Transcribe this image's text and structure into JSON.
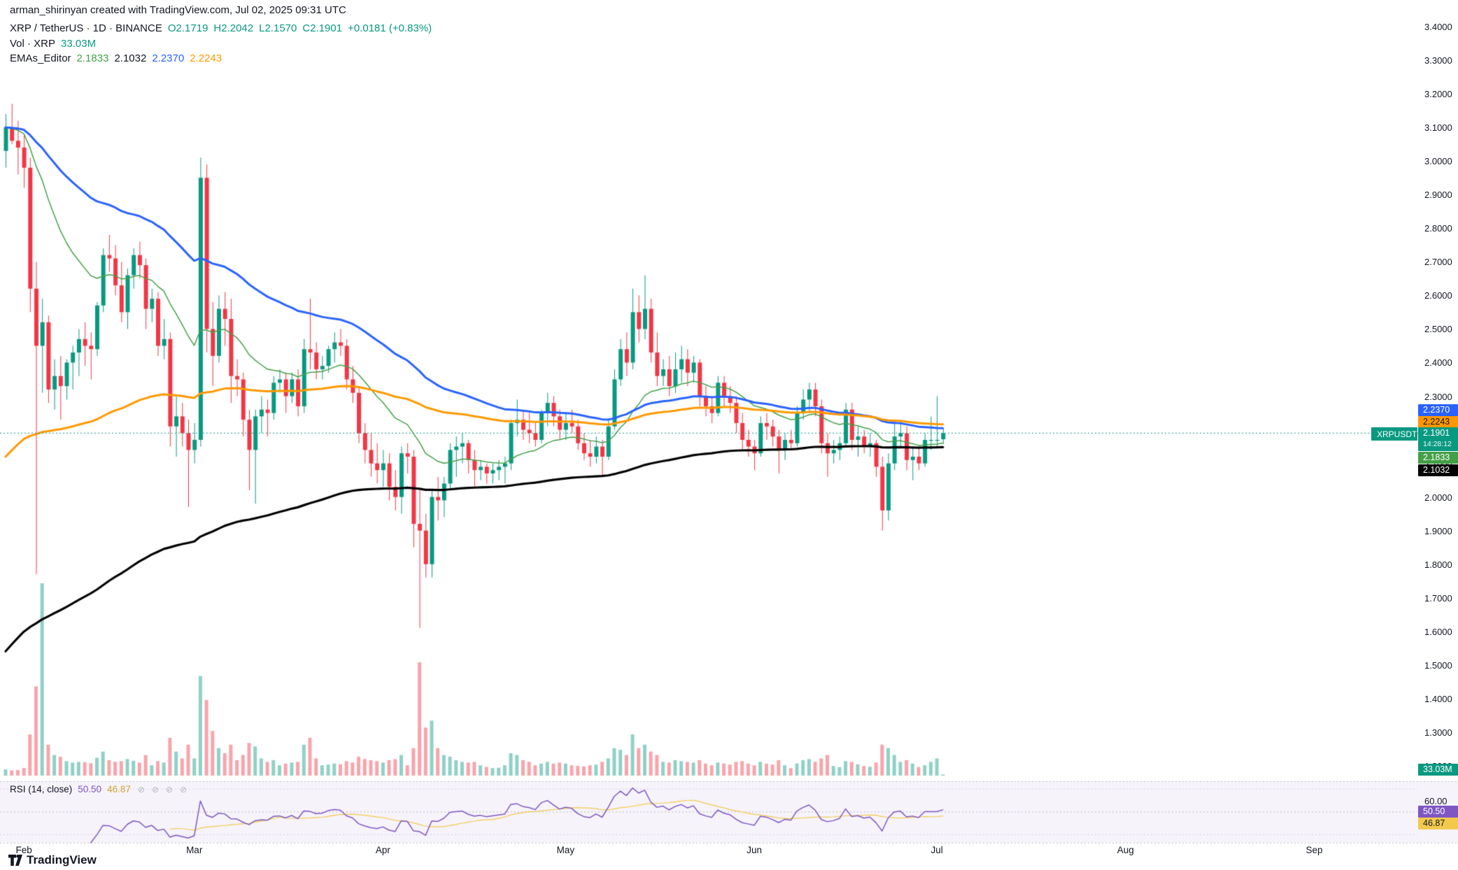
{
  "attribution": "arman_shirinyan created with TradingView.com, Jul 02, 2025 09:31 UTC",
  "header": {
    "symbol_title": "XRP / TetherUS · 1D · BINANCE",
    "ohlc": [
      "O2.1719",
      "H2.2042",
      "L2.1570",
      "C2.1901"
    ],
    "change": "+0.0181 (+0.83%)",
    "volume_label": "Vol · XRP",
    "volume_value": "33.03M",
    "ema_label": "EMAs_Editor",
    "ema_values": [
      "2.1833",
      "2.1032",
      "2.2370",
      "2.2243"
    ]
  },
  "price_axis": {
    "ticks": [
      "3.4000",
      "3.3000",
      "3.2000",
      "3.1000",
      "3.0000",
      "2.9000",
      "2.8000",
      "2.7000",
      "2.6000",
      "2.5000",
      "2.4000",
      "2.3000",
      "2.2000",
      "2.1000",
      "2.0000",
      "1.9000",
      "1.8000",
      "1.7000",
      "1.6000",
      "1.5000",
      "1.4000",
      "1.3000",
      "1.2000"
    ]
  },
  "time_axis": {
    "months": [
      {
        "label": "Feb",
        "index": 3
      },
      {
        "label": "Mar",
        "index": 31
      },
      {
        "label": "Apr",
        "index": 62
      },
      {
        "label": "May",
        "index": 92
      },
      {
        "label": "Jun",
        "index": 123
      },
      {
        "label": "Jul",
        "index": 153
      },
      {
        "label": "Aug",
        "index": 184
      },
      {
        "label": "Sep",
        "index": 215
      }
    ]
  },
  "badges": {
    "blue": "2.2370",
    "orange": "2.2243",
    "symbol": "XRPUSDT",
    "last_price": "2.1901",
    "countdown": "14:28:12",
    "ema_green": "2.1833",
    "ma_black": "2.1032",
    "volume": "33.03M",
    "rsi_scale": "60.00",
    "rsi": "50.50",
    "rsi_ma": "46.87"
  },
  "rsi_panel": {
    "title": "RSI (14, close)",
    "value": "50.50",
    "ma_value": "46.87"
  },
  "branding": "TradingView",
  "colors": {
    "up": "#089981",
    "down": "#F23645",
    "ema_green": "#43A047",
    "ma_black": "#000000",
    "ema_blue": "#2962FF",
    "ema_orange": "#FF9800",
    "rsi_line": "#7E57C2",
    "rsi_ma_line": "#F2C94C",
    "last_price_line": "#089981"
  },
  "chart_data": {
    "type": "candlestick",
    "title": "XRP / TetherUS · 1D · BINANCE",
    "price_range": [
      1.2,
      3.4
    ],
    "last_price": 2.1901,
    "months": [
      "Feb",
      "Mar",
      "Apr",
      "May",
      "Jun",
      "Jul",
      "Aug",
      "Sep"
    ],
    "candles": [
      [
        3.03,
        3.14,
        2.98,
        3.1
      ],
      [
        3.1,
        3.17,
        3.05,
        3.06
      ],
      [
        3.06,
        3.12,
        2.96,
        3.04
      ],
      [
        3.04,
        3.08,
        2.92,
        2.98
      ],
      [
        2.98,
        3.01,
        2.55,
        2.62
      ],
      [
        2.62,
        2.7,
        1.77,
        2.45
      ],
      [
        2.45,
        2.59,
        2.31,
        2.52
      ],
      [
        2.52,
        2.54,
        2.28,
        2.32
      ],
      [
        2.32,
        2.41,
        2.26,
        2.36
      ],
      [
        2.36,
        2.42,
        2.23,
        2.33
      ],
      [
        2.33,
        2.41,
        2.29,
        2.4
      ],
      [
        2.4,
        2.45,
        2.32,
        2.43
      ],
      [
        2.43,
        2.5,
        2.36,
        2.47
      ],
      [
        2.47,
        2.52,
        2.39,
        2.45
      ],
      [
        2.45,
        2.49,
        2.35,
        2.44
      ],
      [
        2.44,
        2.58,
        2.42,
        2.57
      ],
      [
        2.57,
        2.74,
        2.55,
        2.72
      ],
      [
        2.72,
        2.78,
        2.67,
        2.71
      ],
      [
        2.71,
        2.75,
        2.6,
        2.63
      ],
      [
        2.63,
        2.7,
        2.52,
        2.55
      ],
      [
        2.55,
        2.68,
        2.5,
        2.66
      ],
      [
        2.66,
        2.74,
        2.62,
        2.72
      ],
      [
        2.72,
        2.76,
        2.65,
        2.69
      ],
      [
        2.69,
        2.71,
        2.5,
        2.56
      ],
      [
        2.56,
        2.62,
        2.52,
        2.59
      ],
      [
        2.59,
        2.61,
        2.42,
        2.45
      ],
      [
        2.45,
        2.53,
        2.41,
        2.47
      ],
      [
        2.47,
        2.49,
        2.15,
        2.21
      ],
      [
        2.21,
        2.3,
        2.12,
        2.24
      ],
      [
        2.24,
        2.28,
        2.15,
        2.19
      ],
      [
        2.19,
        2.23,
        1.97,
        2.14
      ],
      [
        2.14,
        2.22,
        2.1,
        2.17
      ],
      [
        2.17,
        3.01,
        2.15,
        2.95
      ],
      [
        2.95,
        2.99,
        2.43,
        2.5
      ],
      [
        2.5,
        2.58,
        2.33,
        2.42
      ],
      [
        2.42,
        2.6,
        2.4,
        2.56
      ],
      [
        2.56,
        2.61,
        2.45,
        2.53
      ],
      [
        2.53,
        2.59,
        2.28,
        2.36
      ],
      [
        2.36,
        2.41,
        2.3,
        2.35
      ],
      [
        2.35,
        2.37,
        2.18,
        2.23
      ],
      [
        2.23,
        2.26,
        2.02,
        2.14
      ],
      [
        2.14,
        2.26,
        1.98,
        2.24
      ],
      [
        2.24,
        2.3,
        2.19,
        2.26
      ],
      [
        2.26,
        2.29,
        2.18,
        2.25
      ],
      [
        2.25,
        2.36,
        2.23,
        2.34
      ],
      [
        2.34,
        2.38,
        2.31,
        2.35
      ],
      [
        2.35,
        2.37,
        2.25,
        2.3
      ],
      [
        2.3,
        2.37,
        2.28,
        2.35
      ],
      [
        2.35,
        2.38,
        2.24,
        2.27
      ],
      [
        2.27,
        2.47,
        2.25,
        2.44
      ],
      [
        2.44,
        2.59,
        2.38,
        2.43
      ],
      [
        2.43,
        2.46,
        2.35,
        2.38
      ],
      [
        2.38,
        2.42,
        2.35,
        2.39
      ],
      [
        2.39,
        2.45,
        2.37,
        2.44
      ],
      [
        2.44,
        2.49,
        2.4,
        2.46
      ],
      [
        2.46,
        2.5,
        2.42,
        2.45
      ],
      [
        2.45,
        2.47,
        2.32,
        2.35
      ],
      [
        2.35,
        2.39,
        2.28,
        2.31
      ],
      [
        2.31,
        2.33,
        2.16,
        2.19
      ],
      [
        2.19,
        2.22,
        2.1,
        2.14
      ],
      [
        2.14,
        2.19,
        2.06,
        2.1
      ],
      [
        2.1,
        2.16,
        2.04,
        2.08
      ],
      [
        2.08,
        2.14,
        2.03,
        2.1
      ],
      [
        2.1,
        2.13,
        1.99,
        2.03
      ],
      [
        2.03,
        2.08,
        1.96,
        2.0
      ],
      [
        2.0,
        2.15,
        1.95,
        2.13
      ],
      [
        2.13,
        2.16,
        2.07,
        2.12
      ],
      [
        2.12,
        2.14,
        1.85,
        1.92
      ],
      [
        1.92,
        2.02,
        1.61,
        1.9
      ],
      [
        1.9,
        1.95,
        1.76,
        1.8
      ],
      [
        1.8,
        2.02,
        1.76,
        2.0
      ],
      [
        2.0,
        2.06,
        1.93,
        1.99
      ],
      [
        1.99,
        2.06,
        1.94,
        2.04
      ],
      [
        2.04,
        2.16,
        2.02,
        2.14
      ],
      [
        2.14,
        2.18,
        2.06,
        2.15
      ],
      [
        2.15,
        2.19,
        2.1,
        2.16
      ],
      [
        2.16,
        2.17,
        2.07,
        2.11
      ],
      [
        2.11,
        2.14,
        2.03,
        2.08
      ],
      [
        2.08,
        2.11,
        2.05,
        2.09
      ],
      [
        2.09,
        2.1,
        2.04,
        2.07
      ],
      [
        2.07,
        2.1,
        2.04,
        2.08
      ],
      [
        2.08,
        2.11,
        2.05,
        2.09
      ],
      [
        2.09,
        2.12,
        2.04,
        2.1
      ],
      [
        2.1,
        2.23,
        2.08,
        2.22
      ],
      [
        2.22,
        2.29,
        2.18,
        2.23
      ],
      [
        2.23,
        2.26,
        2.17,
        2.2
      ],
      [
        2.2,
        2.25,
        2.16,
        2.19
      ],
      [
        2.19,
        2.22,
        2.15,
        2.17
      ],
      [
        2.17,
        2.26,
        2.16,
        2.25
      ],
      [
        2.25,
        2.31,
        2.21,
        2.28
      ],
      [
        2.28,
        2.3,
        2.21,
        2.24
      ],
      [
        2.24,
        2.26,
        2.17,
        2.2
      ],
      [
        2.2,
        2.25,
        2.17,
        2.22
      ],
      [
        2.22,
        2.26,
        2.19,
        2.21
      ],
      [
        2.21,
        2.23,
        2.14,
        2.16
      ],
      [
        2.16,
        2.19,
        2.11,
        2.13
      ],
      [
        2.13,
        2.17,
        2.09,
        2.12
      ],
      [
        2.12,
        2.18,
        2.1,
        2.15
      ],
      [
        2.15,
        2.17,
        2.06,
        2.12
      ],
      [
        2.12,
        2.23,
        2.11,
        2.21
      ],
      [
        2.21,
        2.38,
        2.2,
        2.35
      ],
      [
        2.35,
        2.47,
        2.33,
        2.44
      ],
      [
        2.44,
        2.49,
        2.36,
        2.4
      ],
      [
        2.4,
        2.62,
        2.38,
        2.55
      ],
      [
        2.55,
        2.6,
        2.46,
        2.5
      ],
      [
        2.5,
        2.66,
        2.47,
        2.56
      ],
      [
        2.56,
        2.59,
        2.4,
        2.43
      ],
      [
        2.43,
        2.49,
        2.33,
        2.36
      ],
      [
        2.36,
        2.41,
        2.33,
        2.38
      ],
      [
        2.38,
        2.42,
        2.3,
        2.33
      ],
      [
        2.33,
        2.43,
        2.31,
        2.38
      ],
      [
        2.38,
        2.45,
        2.34,
        2.41
      ],
      [
        2.41,
        2.44,
        2.33,
        2.37
      ],
      [
        2.37,
        2.42,
        2.34,
        2.4
      ],
      [
        2.4,
        2.41,
        2.27,
        2.3
      ],
      [
        2.3,
        2.33,
        2.24,
        2.27
      ],
      [
        2.27,
        2.3,
        2.22,
        2.25
      ],
      [
        2.25,
        2.36,
        2.24,
        2.34
      ],
      [
        2.34,
        2.36,
        2.27,
        2.3
      ],
      [
        2.3,
        2.33,
        2.25,
        2.28
      ],
      [
        2.28,
        2.3,
        2.19,
        2.22
      ],
      [
        2.22,
        2.25,
        2.14,
        2.17
      ],
      [
        2.17,
        2.2,
        2.12,
        2.15
      ],
      [
        2.15,
        2.17,
        2.08,
        2.13
      ],
      [
        2.13,
        2.24,
        2.12,
        2.22
      ],
      [
        2.22,
        2.25,
        2.17,
        2.21
      ],
      [
        2.21,
        2.23,
        2.15,
        2.18
      ],
      [
        2.18,
        2.2,
        2.07,
        2.14
      ],
      [
        2.14,
        2.19,
        2.11,
        2.17
      ],
      [
        2.17,
        2.2,
        2.14,
        2.16
      ],
      [
        2.16,
        2.27,
        2.15,
        2.25
      ],
      [
        2.25,
        2.32,
        2.23,
        2.29
      ],
      [
        2.29,
        2.34,
        2.25,
        2.32
      ],
      [
        2.32,
        2.34,
        2.24,
        2.27
      ],
      [
        2.27,
        2.29,
        2.13,
        2.16
      ],
      [
        2.16,
        2.19,
        2.06,
        2.13
      ],
      [
        2.13,
        2.17,
        2.1,
        2.14
      ],
      [
        2.14,
        2.18,
        2.11,
        2.16
      ],
      [
        2.16,
        2.28,
        2.15,
        2.26
      ],
      [
        2.26,
        2.28,
        2.14,
        2.17
      ],
      [
        2.17,
        2.21,
        2.12,
        2.18
      ],
      [
        2.18,
        2.2,
        2.13,
        2.15
      ],
      [
        2.15,
        2.19,
        2.12,
        2.16
      ],
      [
        2.16,
        2.17,
        2.06,
        2.09
      ],
      [
        2.09,
        2.12,
        1.9,
        1.96
      ],
      [
        1.96,
        2.13,
        1.93,
        2.1
      ],
      [
        2.1,
        2.22,
        2.08,
        2.18
      ],
      [
        2.18,
        2.23,
        2.15,
        2.19
      ],
      [
        2.19,
        2.21,
        2.08,
        2.11
      ],
      [
        2.11,
        2.15,
        2.05,
        2.12
      ],
      [
        2.12,
        2.15,
        2.08,
        2.1
      ],
      [
        2.1,
        2.19,
        2.09,
        2.17
      ],
      [
        2.17,
        2.24,
        2.14,
        2.17
      ],
      [
        2.17,
        2.3,
        2.15,
        2.17
      ],
      [
        2.1719,
        2.2042,
        2.157,
        2.1901
      ]
    ],
    "volumes": [
      180,
      150,
      160,
      220,
      1200,
      2600,
      5600,
      900,
      600,
      550,
      420,
      380,
      400,
      390,
      360,
      520,
      700,
      450,
      400,
      420,
      480,
      430,
      380,
      600,
      300,
      420,
      380,
      1100,
      700,
      500,
      900,
      500,
      2900,
      2200,
      1300,
      800,
      650,
      900,
      450,
      600,
      950,
      850,
      500,
      400,
      450,
      300,
      350,
      380,
      400,
      900,
      1100,
      500,
      300,
      320,
      350,
      330,
      420,
      380,
      550,
      480,
      450,
      420,
      380,
      450,
      480,
      600,
      300,
      800,
      3300,
      1400,
      1600,
      800,
      600,
      550,
      450,
      400,
      380,
      400,
      300,
      250,
      220,
      230,
      300,
      650,
      600,
      450,
      400,
      300,
      350,
      400,
      350,
      380,
      350,
      300,
      280,
      270,
      300,
      320,
      400,
      500,
      800,
      750,
      600,
      1200,
      800,
      900,
      700,
      600,
      400,
      380,
      450,
      420,
      400,
      380,
      450,
      350,
      300,
      380,
      350,
      320,
      400,
      420,
      350,
      300,
      400,
      350,
      320,
      450,
      300,
      220,
      350,
      450,
      480,
      400,
      500,
      600,
      280,
      250,
      420,
      400,
      330,
      280,
      260,
      380,
      900,
      800,
      600,
      400,
      450,
      350,
      250,
      300,
      400,
      500,
      33
    ],
    "volume_unit": "M",
    "overlays": [
      {
        "name": "ema-green-fast",
        "color": "#43A047",
        "period": 21,
        "seed": null,
        "width": 1.5,
        "last": 2.1833
      },
      {
        "name": "ma-black-slow",
        "color": "#000000",
        "period": 150,
        "seed": 1.52,
        "width": 3.2,
        "last": 2.1032
      },
      {
        "name": "ema-blue-mid",
        "color": "#2962FF",
        "period": 60,
        "seed": null,
        "width": 3,
        "last": 2.237
      },
      {
        "name": "ema-orange-long",
        "color": "#FF9800",
        "period": 100,
        "seed": 2.1,
        "width": 3,
        "last": 2.2243
      }
    ],
    "oscillator": {
      "name": "RSI",
      "period": 14,
      "source": "close",
      "last": 50.5,
      "ma_last": 46.87,
      "visible_range": [
        23,
        77
      ]
    }
  }
}
